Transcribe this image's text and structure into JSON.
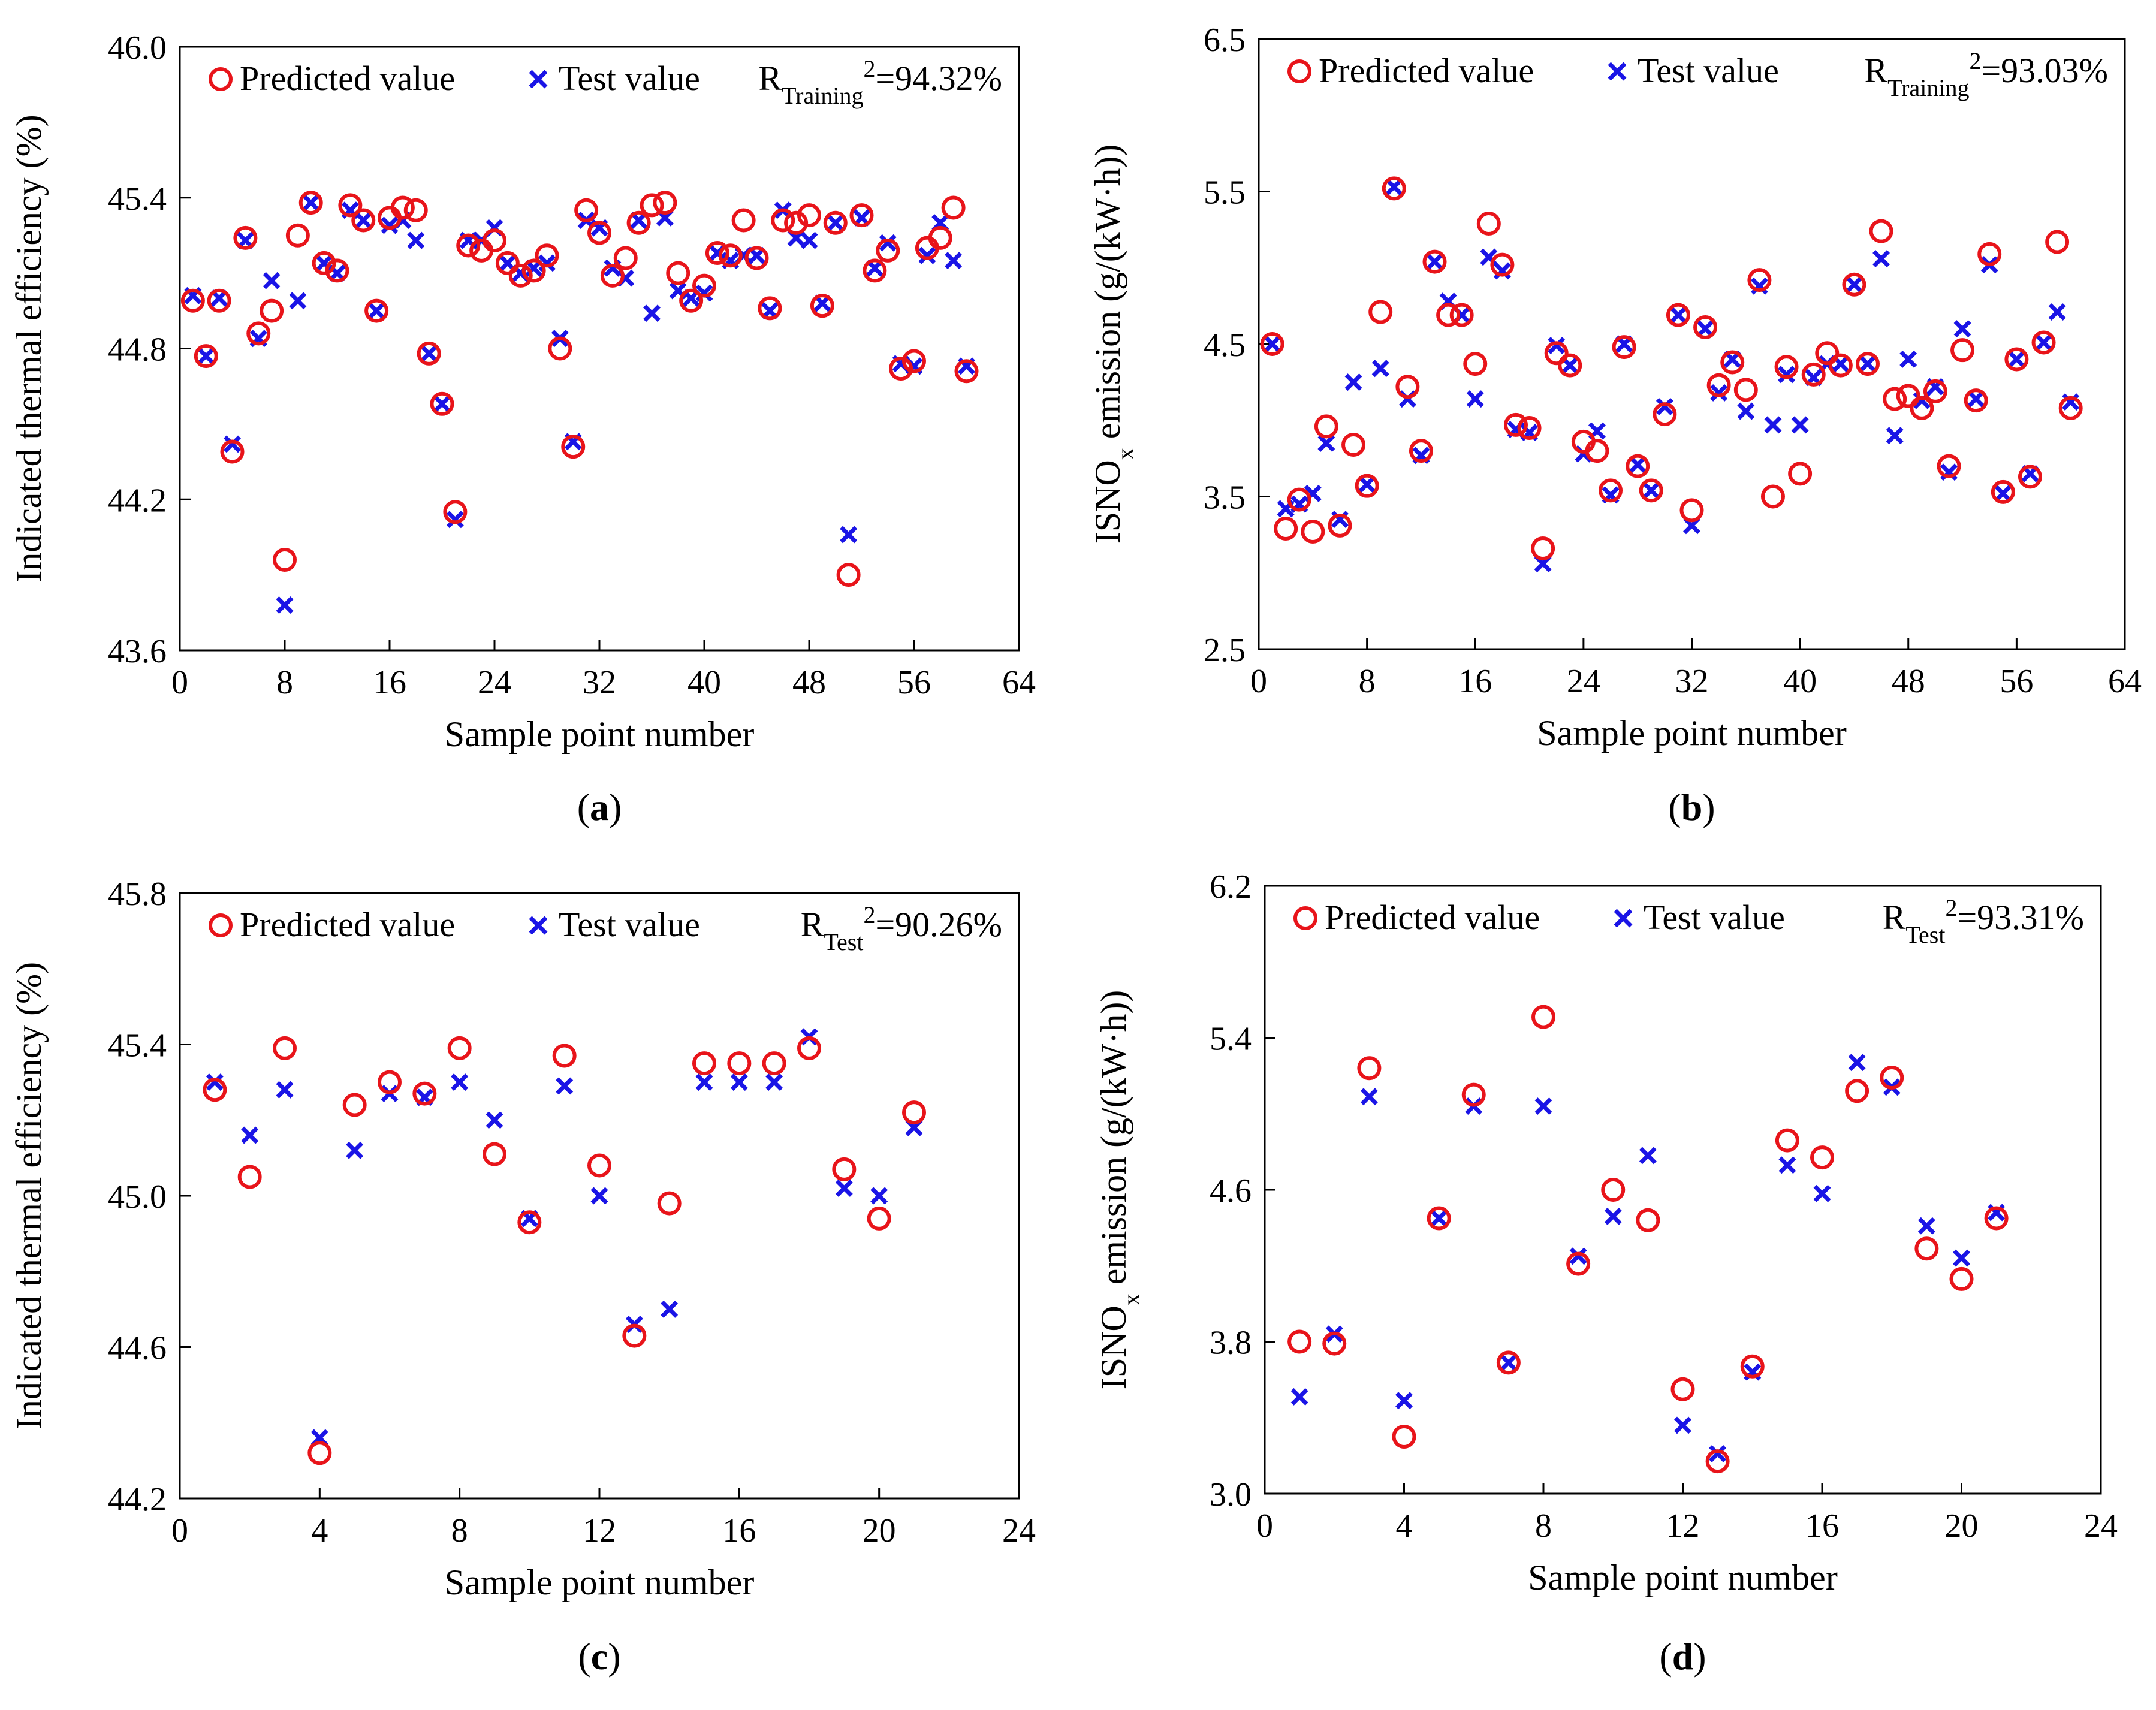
{
  "colors": {
    "predicted": "#e8141a",
    "test": "#1a14e6",
    "axis": "#000000"
  },
  "legend_predicted": "Predicted value",
  "legend_test": "Test value",
  "chart_data": [
    {
      "id": "a",
      "type": "scatter",
      "panel_label": "a",
      "xlabel": "Sample point number",
      "ylabel": "Indicated thermal efficiency (%)",
      "xlim": [
        0,
        64
      ],
      "ylim": [
        43.6,
        46.0
      ],
      "xticks": [
        0,
        8,
        16,
        24,
        32,
        40,
        48,
        56,
        64
      ],
      "yticks": [
        43.6,
        44.2,
        44.8,
        45.4,
        46.0
      ],
      "ydecimals": 1,
      "r2": {
        "prefix": "R",
        "sub": "Training",
        "sup": "2",
        "value": "=94.32%"
      },
      "series": [
        {
          "name": "Predicted value",
          "x": [
            1,
            2,
            3,
            4,
            5,
            6,
            7,
            8,
            9,
            10,
            11,
            12,
            13,
            14,
            15,
            16,
            17,
            18,
            19,
            20,
            21,
            22,
            23,
            24,
            25,
            26,
            27,
            28,
            29,
            30,
            31,
            32,
            33,
            34,
            35,
            36,
            37,
            38,
            39,
            40,
            41,
            42,
            43,
            44,
            45,
            46,
            47,
            48,
            49,
            50,
            51,
            52,
            53,
            54,
            55,
            56,
            57,
            58,
            59,
            60
          ],
          "y": [
            44.99,
            44.77,
            44.99,
            44.39,
            45.24,
            44.86,
            44.95,
            43.96,
            45.25,
            45.38,
            45.14,
            45.11,
            45.37,
            45.31,
            44.95,
            45.32,
            45.36,
            45.35,
            44.78,
            44.58,
            44.15,
            45.21,
            45.19,
            45.23,
            45.14,
            45.09,
            45.11,
            45.17,
            44.8,
            44.41,
            45.35,
            45.26,
            45.09,
            45.16,
            45.3,
            45.37,
            45.38,
            45.1,
            44.99,
            45.05,
            45.18,
            45.17,
            45.31,
            45.16,
            44.96,
            45.31,
            45.3,
            45.33,
            44.97,
            45.3,
            43.9,
            45.33,
            45.11,
            45.19,
            44.72,
            44.75,
            45.2,
            45.24,
            45.36,
            44.71
          ]
        },
        {
          "name": "Test value",
          "x": [
            1,
            2,
            3,
            4,
            5,
            6,
            7,
            8,
            9,
            10,
            11,
            12,
            13,
            14,
            15,
            16,
            17,
            18,
            19,
            20,
            21,
            22,
            23,
            24,
            25,
            26,
            27,
            28,
            29,
            30,
            31,
            32,
            33,
            34,
            35,
            36,
            37,
            38,
            39,
            40,
            41,
            42,
            43,
            44,
            45,
            46,
            47,
            48,
            49,
            50,
            51,
            52,
            53,
            54,
            55,
            56,
            57,
            58,
            59,
            60
          ],
          "y": [
            45.01,
            44.77,
            45.0,
            44.42,
            45.23,
            44.84,
            45.07,
            43.78,
            44.99,
            45.38,
            45.14,
            45.1,
            45.35,
            45.31,
            44.95,
            45.29,
            45.31,
            45.23,
            44.78,
            44.58,
            44.12,
            45.23,
            45.23,
            45.28,
            45.14,
            45.1,
            45.12,
            45.14,
            44.84,
            44.43,
            45.31,
            45.28,
            45.12,
            45.08,
            45.31,
            44.94,
            45.32,
            45.03,
            45.0,
            45.02,
            45.18,
            45.15,
            45.17,
            45.17,
            44.95,
            45.35,
            45.24,
            45.23,
            44.98,
            45.3,
            44.06,
            45.32,
            45.12,
            45.22,
            44.74,
            44.73,
            45.17,
            45.3,
            45.15,
            44.73
          ]
        }
      ]
    },
    {
      "id": "b",
      "type": "scatter",
      "panel_label": "b",
      "xlabel": "Sample point number",
      "ylabel_main": "ISNO",
      "ylabel_sub": "x",
      "ylabel_rest": " emission (g/(kW·h))",
      "xlim": [
        0,
        64
      ],
      "ylim": [
        2.5,
        6.5
      ],
      "xticks": [
        0,
        8,
        16,
        24,
        32,
        40,
        48,
        56,
        64
      ],
      "yticks": [
        2.5,
        3.5,
        4.5,
        5.5,
        6.5
      ],
      "ydecimals": 1,
      "r2": {
        "prefix": "R",
        "sub": "Training",
        "sup": "2",
        "value": "=93.03%"
      },
      "series": [
        {
          "name": "Predicted value",
          "x": [
            1,
            2,
            3,
            4,
            5,
            6,
            7,
            8,
            9,
            10,
            11,
            12,
            13,
            14,
            15,
            16,
            17,
            18,
            19,
            20,
            21,
            22,
            23,
            24,
            25,
            26,
            27,
            28,
            29,
            30,
            31,
            32,
            33,
            34,
            35,
            36,
            37,
            38,
            39,
            40,
            41,
            42,
            43,
            44,
            45,
            46,
            47,
            48,
            49,
            50,
            51,
            52,
            53,
            54,
            55,
            56,
            57,
            58,
            59,
            60
          ],
          "y": [
            4.5,
            3.29,
            3.48,
            3.27,
            3.96,
            3.31,
            3.84,
            3.57,
            4.71,
            5.52,
            4.22,
            3.8,
            5.04,
            4.69,
            4.69,
            4.37,
            5.29,
            5.02,
            3.97,
            3.95,
            3.16,
            4.44,
            4.36,
            3.86,
            3.8,
            3.54,
            4.48,
            3.7,
            3.54,
            4.04,
            4.69,
            3.41,
            4.61,
            4.23,
            4.38,
            4.2,
            4.92,
            3.5,
            4.35,
            3.65,
            4.3,
            4.44,
            4.36,
            4.89,
            4.37,
            5.24,
            4.14,
            4.16,
            4.08,
            4.19,
            3.7,
            4.46,
            4.13,
            5.09,
            3.53,
            4.4,
            3.63,
            4.51,
            5.17,
            4.08
          ]
        },
        {
          "name": "Test value",
          "x": [
            1,
            2,
            3,
            4,
            5,
            6,
            7,
            8,
            9,
            10,
            11,
            12,
            13,
            14,
            15,
            16,
            17,
            18,
            19,
            20,
            21,
            22,
            23,
            24,
            25,
            26,
            27,
            28,
            29,
            30,
            31,
            32,
            33,
            34,
            35,
            36,
            37,
            38,
            39,
            40,
            41,
            42,
            43,
            44,
            45,
            46,
            47,
            48,
            49,
            50,
            51,
            52,
            53,
            54,
            55,
            56,
            57,
            58,
            59,
            60
          ],
          "y": [
            4.5,
            3.42,
            3.45,
            3.52,
            3.85,
            3.35,
            4.25,
            3.58,
            4.34,
            5.53,
            4.14,
            3.77,
            5.04,
            4.78,
            4.69,
            4.14,
            5.07,
            4.98,
            3.94,
            3.92,
            3.06,
            4.49,
            4.36,
            3.78,
            3.93,
            3.51,
            4.5,
            3.71,
            3.54,
            4.09,
            4.69,
            3.31,
            4.6,
            4.18,
            4.4,
            4.06,
            4.88,
            3.97,
            4.3,
            3.97,
            4.28,
            4.37,
            4.37,
            4.89,
            4.37,
            5.06,
            3.9,
            4.4,
            4.13,
            4.22,
            3.66,
            4.6,
            4.14,
            5.02,
            3.52,
            4.4,
            3.65,
            4.51,
            4.71,
            4.12
          ]
        }
      ]
    },
    {
      "id": "c",
      "type": "scatter",
      "panel_label": "c",
      "xlabel": "Sample point number",
      "ylabel": "Indicated thermal efficiency (%)",
      "xlim": [
        0,
        24
      ],
      "ylim": [
        44.2,
        45.8
      ],
      "xticks": [
        0,
        4,
        8,
        12,
        16,
        20,
        24
      ],
      "yticks": [
        44.2,
        44.6,
        45.0,
        45.4,
        45.8
      ],
      "ydecimals": 1,
      "r2": {
        "prefix": "R",
        "sub": "Test",
        "sup": "2",
        "value": "=90.26%"
      },
      "series": [
        {
          "name": "Predicted value",
          "x": [
            1,
            2,
            3,
            4,
            5,
            6,
            7,
            8,
            9,
            10,
            11,
            12,
            13,
            14,
            15,
            16,
            17,
            18,
            19,
            20,
            21
          ],
          "y": [
            45.28,
            45.05,
            45.39,
            44.32,
            45.24,
            45.3,
            45.27,
            45.39,
            45.11,
            44.93,
            45.37,
            45.08,
            44.63,
            44.98,
            45.35,
            45.35,
            45.35,
            45.39,
            45.07,
            44.94,
            45.22
          ]
        },
        {
          "name": "Test value",
          "x": [
            1,
            2,
            3,
            4,
            5,
            6,
            7,
            8,
            9,
            10,
            11,
            12,
            13,
            14,
            15,
            16,
            17,
            18,
            19,
            20,
            21
          ],
          "y": [
            45.3,
            45.16,
            45.28,
            44.36,
            45.12,
            45.27,
            45.26,
            45.3,
            45.2,
            44.94,
            45.29,
            45.0,
            44.66,
            44.7,
            45.3,
            45.3,
            45.3,
            45.42,
            45.02,
            45.0,
            45.18
          ]
        }
      ]
    },
    {
      "id": "d",
      "type": "scatter",
      "panel_label": "d",
      "xlabel": "Sample point number",
      "ylabel_main": "ISNO",
      "ylabel_sub": "x",
      "ylabel_rest": " emission (g/(kW·h))",
      "xlim": [
        0,
        24
      ],
      "ylim": [
        3.0,
        6.2
      ],
      "xticks": [
        0,
        4,
        8,
        12,
        16,
        20,
        24
      ],
      "yticks": [
        3.0,
        3.8,
        4.6,
        5.4,
        6.2
      ],
      "ydecimals": 1,
      "r2": {
        "prefix": "R",
        "sub": "Test",
        "sup": "2",
        "value": "=93.31%"
      },
      "series": [
        {
          "name": "Predicted value",
          "x": [
            1,
            2,
            3,
            4,
            5,
            6,
            7,
            8,
            9,
            10,
            11,
            12,
            13,
            14,
            15,
            16,
            17,
            18,
            19,
            20,
            21
          ],
          "y": [
            3.8,
            3.79,
            5.24,
            3.3,
            4.45,
            5.1,
            3.69,
            5.51,
            4.21,
            4.6,
            4.44,
            3.55,
            3.17,
            3.67,
            4.86,
            4.77,
            5.12,
            5.19,
            4.29,
            4.13,
            4.45
          ]
        },
        {
          "name": "Test value",
          "x": [
            1,
            2,
            3,
            4,
            5,
            6,
            7,
            8,
            9,
            10,
            11,
            12,
            13,
            14,
            15,
            16,
            17,
            18,
            19,
            20,
            21
          ],
          "y": [
            3.51,
            3.84,
            5.09,
            3.49,
            4.45,
            5.04,
            3.69,
            5.04,
            4.25,
            4.46,
            4.78,
            3.36,
            3.21,
            3.64,
            4.73,
            4.58,
            5.27,
            5.14,
            4.41,
            4.24,
            4.48
          ]
        }
      ]
    }
  ]
}
